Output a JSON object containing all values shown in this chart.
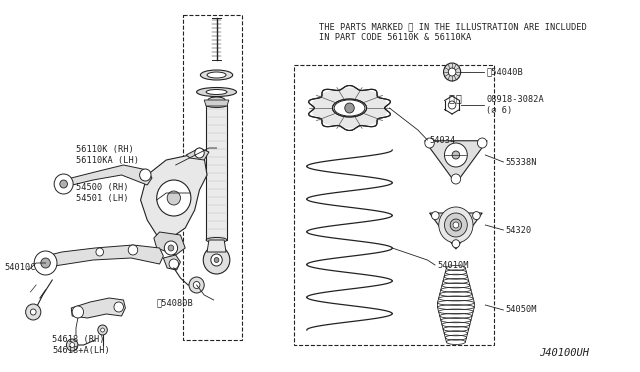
{
  "background_color": "#ffffff",
  "diagram_id": "J40100UH",
  "notice_line1": "THE PARTS MARKED ※ IN THE ILLUSTRATION ARE INCLUDED",
  "notice_line2": "IN PART CODE 56110K & 56110KA",
  "font_size": 6.2,
  "lw": 0.7
}
